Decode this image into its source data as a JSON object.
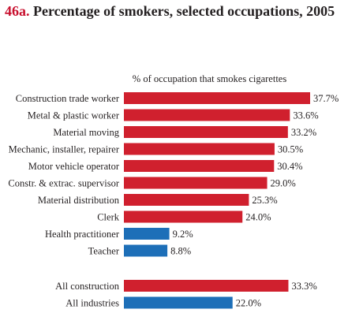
{
  "header": {
    "number": "46a.",
    "title": "Percentage of smokers, selected occupations, 2005"
  },
  "chart_data": {
    "type": "bar",
    "orientation": "horizontal",
    "subtitle": "% of occupation that smokes cigarettes",
    "colors": {
      "red": "#d0202e",
      "blue": "#1d6fb8"
    },
    "unit_suffix": "%",
    "xlim": [
      0,
      37.7
    ],
    "groups": [
      {
        "categories": [
          "Construction trade worker",
          "Metal & plastic worker",
          "Material moving",
          "Mechanic, installer, repairer",
          "Motor vehicle operator",
          "Constr. & extrac. supervisor",
          "Material distribution",
          "Clerk",
          "Health practitioner",
          "Teacher"
        ],
        "values": [
          37.7,
          33.6,
          33.2,
          30.5,
          30.4,
          29.0,
          25.3,
          24.0,
          9.2,
          8.8
        ],
        "colors": [
          "red",
          "red",
          "red",
          "red",
          "red",
          "red",
          "red",
          "red",
          "blue",
          "blue"
        ]
      },
      {
        "categories": [
          "All construction",
          "All industries"
        ],
        "values": [
          33.3,
          22.0
        ],
        "colors": [
          "red",
          "blue"
        ]
      }
    ]
  }
}
